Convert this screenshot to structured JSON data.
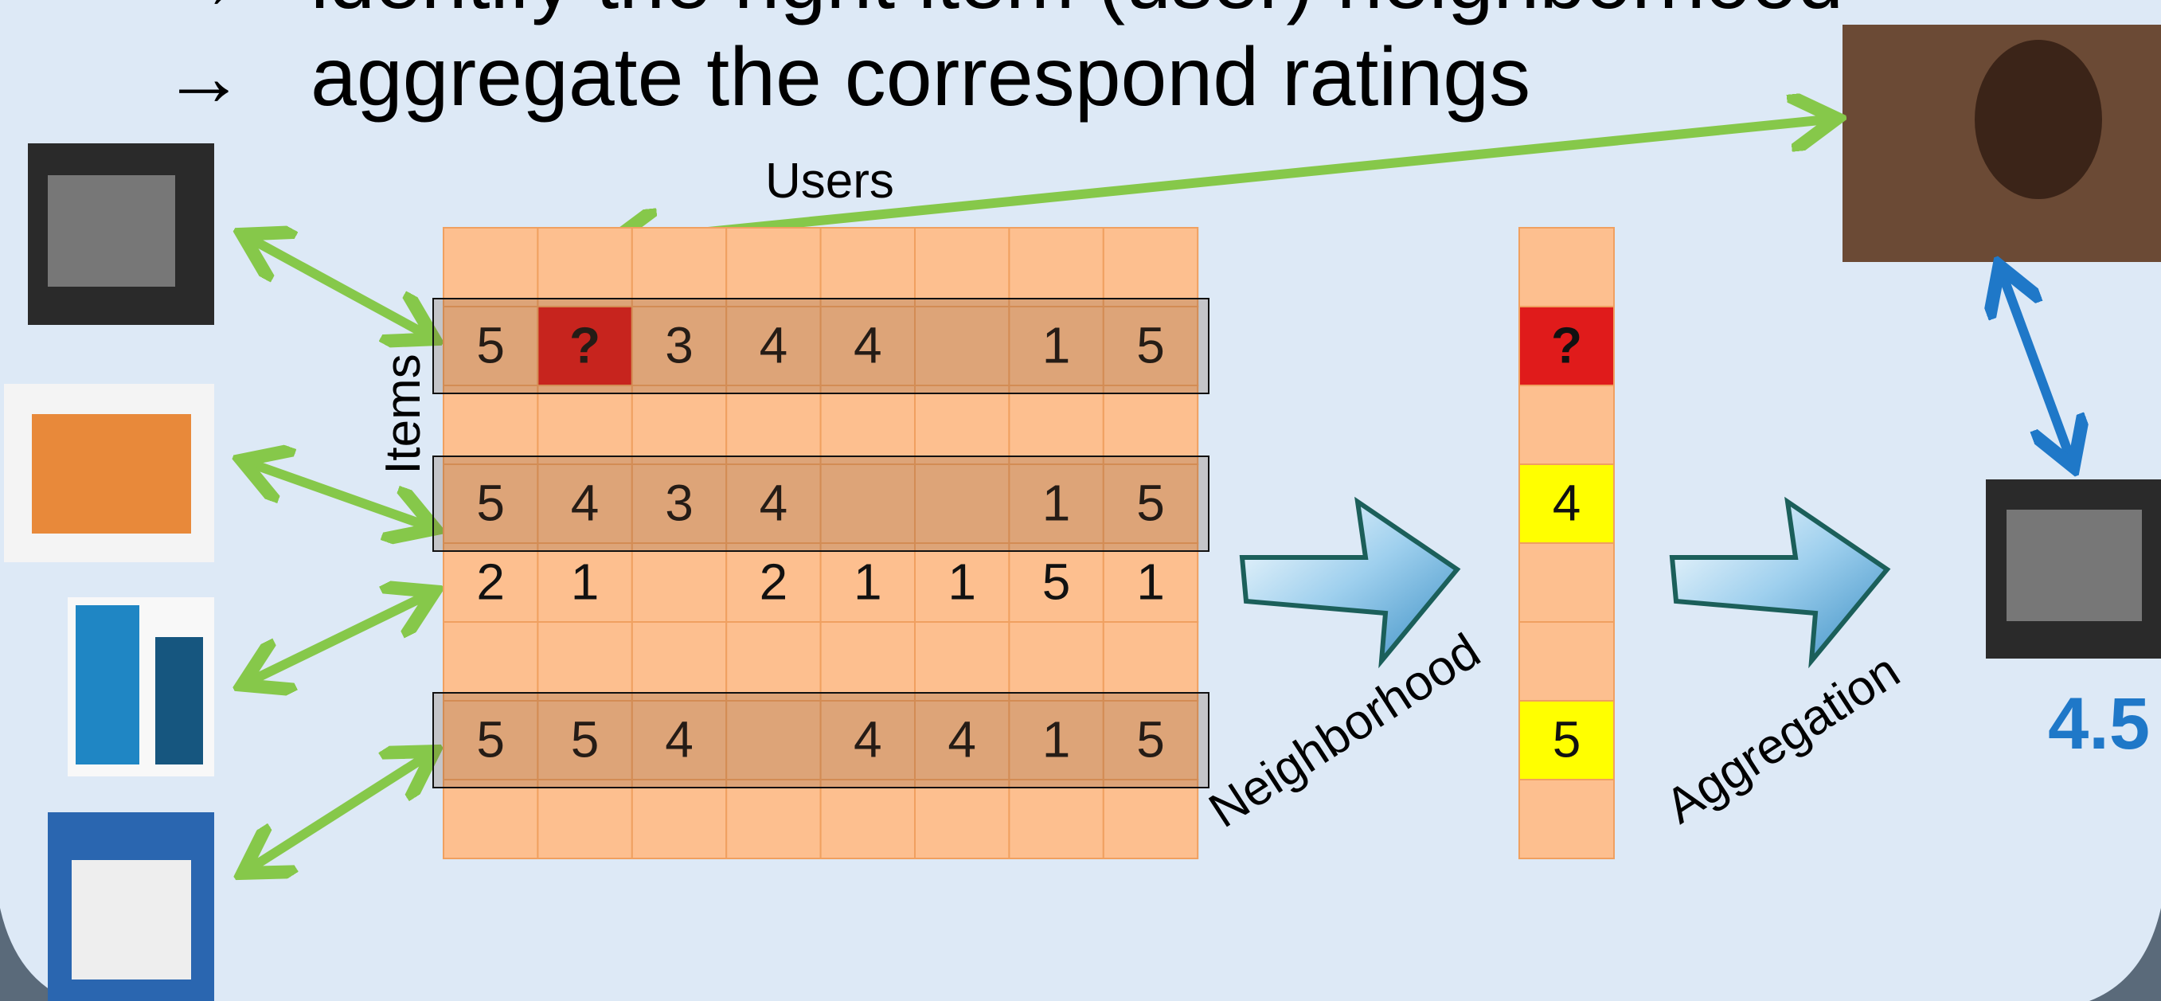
{
  "bullets": [
    "identify the right item (user) neighborhood",
    "aggregate the correspond ratings"
  ],
  "bullet_symbol": "→",
  "labels": {
    "users": "Users",
    "items": "Items",
    "neighborhood": "Neighborhood",
    "aggregation": "Aggregation",
    "prediction": "4.5"
  },
  "matrix": {
    "rows": [
      [
        null,
        null,
        null,
        null,
        null,
        null,
        null,
        null
      ],
      [
        5,
        "?",
        3,
        4,
        4,
        null,
        1,
        5
      ],
      [
        null,
        null,
        null,
        null,
        null,
        null,
        null,
        null
      ],
      [
        5,
        4,
        3,
        4,
        null,
        null,
        1,
        5
      ],
      [
        2,
        1,
        null,
        2,
        1,
        1,
        5,
        1
      ],
      [
        null,
        null,
        null,
        null,
        null,
        null,
        null,
        null
      ],
      [
        5,
        5,
        4,
        null,
        4,
        4,
        1,
        5
      ],
      [
        null,
        null,
        null,
        null,
        null,
        null,
        null,
        null
      ]
    ],
    "neighborhood_rows": [
      1,
      3,
      6
    ]
  },
  "column": [
    null,
    "?",
    null,
    4,
    null,
    null,
    5,
    null
  ]
}
